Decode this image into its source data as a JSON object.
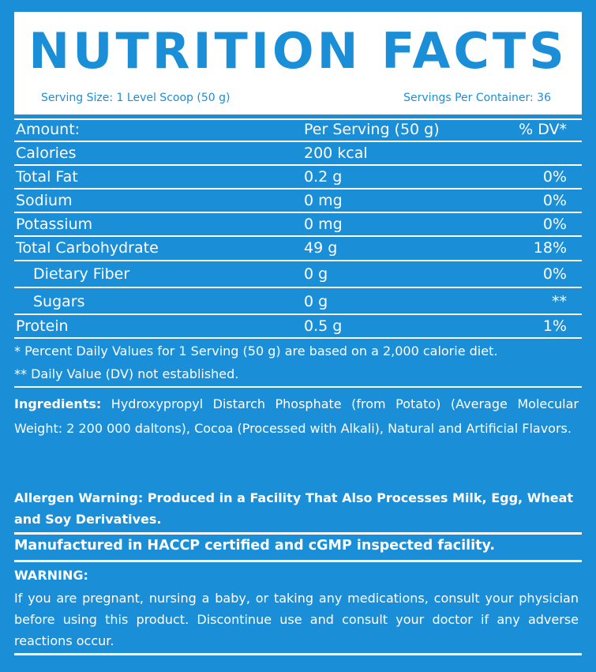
{
  "header": {
    "title": "NUTRITION FACTS",
    "serving_size": "Serving Size: 1 Level Scoop (50 g)",
    "servings_per_container": "Servings Per Container: 36"
  },
  "table": {
    "columns": [
      "Amount:",
      "Per Serving (50 g)",
      "% DV*"
    ],
    "rows": [
      {
        "name": "Calories",
        "amount": "200 kcal",
        "dv": ""
      },
      {
        "name": "Total Fat",
        "amount": "0.2 g",
        "dv": "0%"
      },
      {
        "name": "Sodium",
        "amount": "0 mg",
        "dv": "0%"
      },
      {
        "name": "Potassium",
        "amount": "0 mg",
        "dv": "0%"
      },
      {
        "name": "Total Carbohydrate",
        "amount": "49 g",
        "dv": "18%"
      },
      {
        "name": "Dietary Fiber",
        "amount": "0 g",
        "dv": "0%"
      },
      {
        "name": "Sugars",
        "amount": "0 g",
        "dv": "**"
      },
      {
        "name": "Protein",
        "amount": "0.5 g",
        "dv": "1%"
      }
    ]
  },
  "footnotes": {
    "percent_dv": "* Percent Daily Values for 1 Serving (50 g) are based on a 2,000 calorie diet.",
    "not_established": "** Daily Value (DV) not established."
  },
  "ingredients": {
    "label": "Ingredients:",
    "text": " Hydroxypropyl Distarch Phosphate (from Potato) (Average Molecular Weight: 2 200 000 daltons), Cocoa (Processed with Alkali), Natural and Artificial Flavors."
  },
  "allergen": "Allergen Warning: Produced in a Facility That Also Processes Milk, Egg, Wheat and Soy Derivatives.",
  "manufacturing": "Manufactured in HACCP certified and cGMP inspected facility.",
  "warning": {
    "title": "WARNING:",
    "text": "If you are pregnant, nursing a baby, or taking any medications, consult your physician before using this product. Discontinue use and consult your doctor if any adverse reactions occur."
  },
  "colors": {
    "background": "#1a8fd8",
    "text": "#ffffff"
  }
}
